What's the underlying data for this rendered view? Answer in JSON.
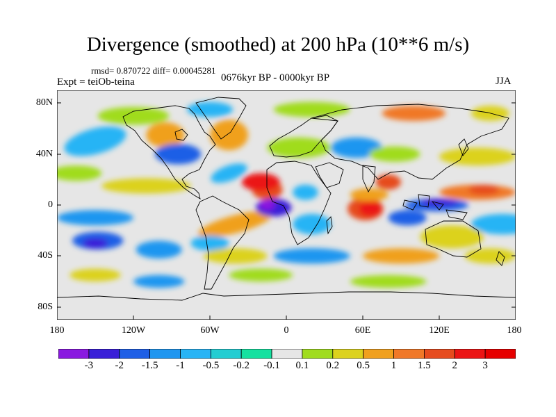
{
  "title": "Divergence (smoothed) at 200 hPa (10**6 m/s)",
  "stats": "rmsd= 0.870722 diff= 0.00045281",
  "experiment": "Expt = teiOb-teina",
  "period": "0676kyr BP - 0000kyr BP",
  "season": "JJA",
  "chart_data": {
    "type": "heatmap",
    "title": "Divergence (smoothed) at 200 hPa (10**6 m/s)",
    "field": "200 hPa divergence difference, 0676kyr BP minus 0000kyr BP, JJA",
    "units": "10**6 m/s",
    "x_axis": {
      "range": [
        -180,
        180
      ],
      "tick_labels": [
        "180",
        "120W",
        "60W",
        "0",
        "60E",
        "120E",
        "180"
      ]
    },
    "y_axis": {
      "range": [
        -90,
        90
      ],
      "tick_labels": [
        "80N",
        "40N",
        "0",
        "40S",
        "80S"
      ]
    },
    "colorbar": {
      "levels": [
        "-3",
        "-2",
        "-1.5",
        "-1",
        "-0.5",
        "-0.2",
        "-0.1",
        "0.1",
        "0.2",
        "0.5",
        "1",
        "1.5",
        "2",
        "3"
      ],
      "colors": [
        "#8a19e0",
        "#3a1fd8",
        "#1e5fe6",
        "#1e96f0",
        "#28b4f5",
        "#23cdd2",
        "#14e1a0",
        "#e6e6e6",
        "#a0dc1e",
        "#dcd21e",
        "#f0a01e",
        "#f07828",
        "#e64b1e",
        "#eb1414",
        "#e60000"
      ]
    },
    "features": [
      {
        "lon": -10,
        "lat": 0,
        "value": -3,
        "desc": "strong convergence over equatorial Atlantic"
      },
      {
        "lon": 65,
        "lat": -3,
        "value": 3,
        "desc": "strong divergence over western Indian Ocean"
      },
      {
        "lon": 118,
        "lat": 2,
        "value": -3,
        "desc": "convergence over Maritime Continent"
      },
      {
        "lon": 150,
        "lat": 12,
        "value": 2,
        "desc": "divergence over western Pacific"
      },
      {
        "lon": -20,
        "lat": 16,
        "value": 2,
        "desc": "divergence over West Africa"
      },
      {
        "lon": -148,
        "lat": -28,
        "value": -2,
        "desc": "convergence over south Pacific"
      },
      {
        "lon": -40,
        "lat": -12,
        "value": 2,
        "desc": "divergence over south Atlantic / Brazil"
      }
    ]
  }
}
